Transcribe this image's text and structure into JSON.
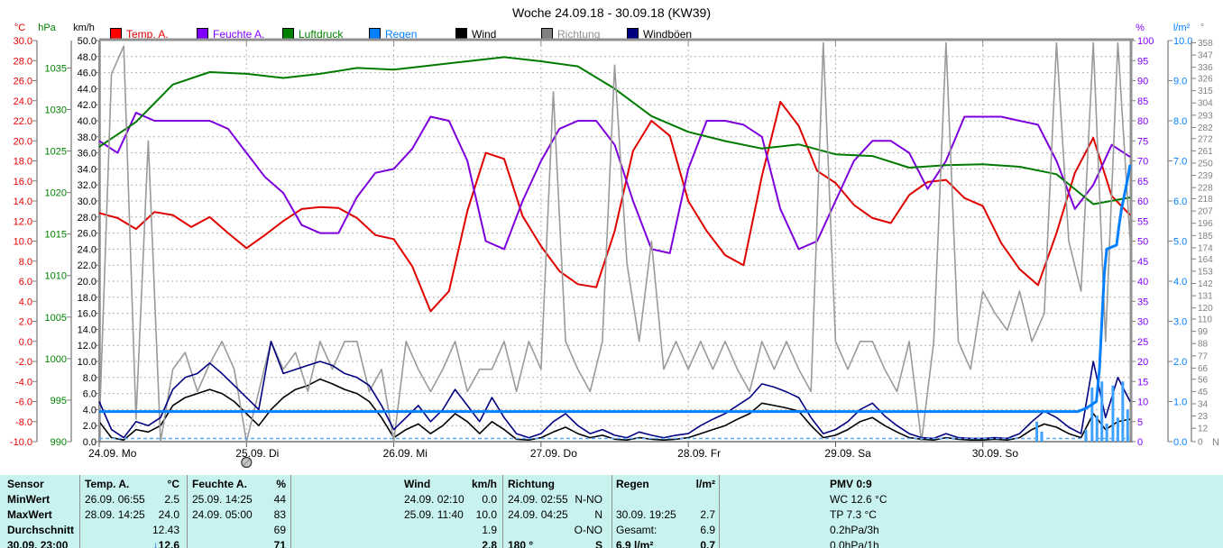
{
  "title": "Woche 24.09.18 - 30.09.18 (KW39)",
  "legend": [
    {
      "label": "Temp. A.",
      "swatch": "#ff0000",
      "text_color": "#e00000"
    },
    {
      "label": "Feuchte A.",
      "swatch": "#8000ff",
      "text_color": "#8000ff"
    },
    {
      "label": "Luftdruck",
      "swatch": "#008000",
      "text_color": "#008000"
    },
    {
      "label": "Regen",
      "swatch": "#0080ff",
      "text_color": "#0080ff"
    },
    {
      "label": "Wind",
      "swatch": "#000000",
      "text_color": "#000000"
    },
    {
      "label": "Richtung",
      "swatch": "#808080",
      "text_color": "#909090"
    },
    {
      "label": "Windböen",
      "swatch": "#000080",
      "text_color": "#000000"
    }
  ],
  "axes": {
    "temp": {
      "unit": "°C",
      "color": "#e80000",
      "ticks": [
        "30.0",
        "28.0",
        "26.0",
        "24.0",
        "22.0",
        "20.0",
        "18.0",
        "16.0",
        "14.0",
        "12.0",
        "10.0",
        "8.0",
        "6.0",
        "4.0",
        "2.0",
        "0.0",
        "-2.0",
        "-4.0",
        "-6.0",
        "-8.0",
        "-10.0"
      ]
    },
    "pressure": {
      "unit": "hPa",
      "color": "#008000",
      "ticks": [
        "1035",
        "1030",
        "1025",
        "1020",
        "1015",
        "1010",
        "1005",
        "1000",
        "995",
        "990"
      ]
    },
    "wind": {
      "unit": "km/h",
      "color": "#000000",
      "ticks": [
        "50.0",
        "48.0",
        "46.0",
        "44.0",
        "42.0",
        "40.0",
        "38.0",
        "36.0",
        "34.0",
        "32.0",
        "30.0",
        "28.0",
        "26.0",
        "24.0",
        "22.0",
        "20.0",
        "18.0",
        "16.0",
        "14.0",
        "12.0",
        "10.0",
        "8.0",
        "6.0",
        "4.0",
        "2.0",
        "0.0"
      ]
    },
    "humidity": {
      "unit": "%",
      "color": "#8000ff",
      "ticks": [
        "100",
        "95",
        "90",
        "85",
        "80",
        "75",
        "70",
        "65",
        "60",
        "55",
        "50",
        "45",
        "40",
        "35",
        "30",
        "25",
        "20",
        "15",
        "10",
        "5",
        "0"
      ]
    },
    "rain": {
      "unit": "l/m²",
      "color": "#0080ff",
      "ticks": [
        "10.0",
        "9.0",
        "8.0",
        "7.0",
        "6.0",
        "5.0",
        "4.0",
        "3.0",
        "2.0",
        "1.0",
        "0.0"
      ]
    },
    "direction": {
      "unit": "°",
      "color": "#808080",
      "ticks": [
        "358",
        "347",
        "336",
        "326",
        "315",
        "304",
        "293",
        "282",
        "272",
        "261",
        "250",
        "239",
        "228",
        "218",
        "207",
        "196",
        "185",
        "174",
        "164",
        "153",
        "142",
        "131",
        "120",
        "110",
        "99",
        "88",
        "77",
        "66",
        "56",
        "45",
        "34",
        "23",
        "12",
        "0"
      ],
      "compass_end": "N"
    }
  },
  "x_axis": {
    "days": [
      "24.09. Mo",
      "25.09. Di",
      "26.09. Mi",
      "27.09. Do",
      "28.09. Fr",
      "29.09. Sa",
      "30.09. So"
    ],
    "moon_symbol_day_index": 1
  },
  "chart_data": {
    "type": "line",
    "x_unit": "hours from 24.09 00:00",
    "x_range": [
      0,
      168
    ],
    "axis_ranges": {
      "temp": [
        -10,
        30
      ],
      "pressure": [
        990,
        1038.3
      ],
      "wind": [
        0,
        50
      ],
      "humidity": [
        0,
        100
      ],
      "rain": [
        0,
        10
      ],
      "direction": [
        0,
        360
      ]
    },
    "grid": {
      "h_divisions": 25,
      "v_days": 7
    },
    "series": [
      {
        "name": "Temp. A.",
        "axis": "temp",
        "color": "#e00000",
        "width": 2,
        "step": 3,
        "values": [
          12.8,
          12.3,
          11.2,
          12.9,
          12.6,
          11.4,
          12.4,
          10.8,
          9.3,
          10.6,
          12,
          13.2,
          13.4,
          13.3,
          12.3,
          10.6,
          10.2,
          7.5,
          3,
          5,
          13,
          18.8,
          18.2,
          12.5,
          9.5,
          7,
          5.7,
          5.4,
          11,
          19,
          22,
          20.5,
          14,
          11,
          8.6,
          7.6,
          16.5,
          23.9,
          21.5,
          17,
          15.8,
          13.6,
          12.3,
          11.8,
          14.6,
          15.9,
          16.1,
          14.3,
          13.5,
          9.8,
          7.2,
          5.6,
          10.8,
          16.8,
          20.3,
          14.5,
          12.6
        ]
      },
      {
        "name": "Feuchte A.",
        "axis": "humidity",
        "color": "#7d00dd",
        "width": 2,
        "step": 3,
        "values": [
          75,
          72,
          82,
          80,
          80,
          80,
          80,
          78,
          72,
          66,
          62,
          54,
          52,
          52,
          61,
          67,
          68,
          73,
          81,
          80,
          70,
          50,
          48,
          60,
          70,
          78,
          80,
          80,
          74,
          60,
          48,
          47,
          68,
          80,
          80,
          79,
          76,
          58,
          48,
          50,
          60,
          70,
          75,
          75,
          72,
          63,
          70,
          81,
          81,
          81,
          80,
          79,
          70,
          58,
          64,
          74,
          71
        ]
      },
      {
        "name": "Luftdruck",
        "axis": "pressure",
        "color": "#007a00",
        "width": 2,
        "step": 6,
        "values": [
          1025.5,
          1028.5,
          1033,
          1034.5,
          1034.3,
          1033.8,
          1034.3,
          1035,
          1034.8,
          1035.3,
          1035.8,
          1036.3,
          1035.8,
          1035.2,
          1032.5,
          1029.2,
          1027.3,
          1026.2,
          1025.3,
          1025.8,
          1024.6,
          1024.4,
          1023,
          1023.3,
          1023.4,
          1023.1,
          1022.2,
          1018.6,
          1019.4
        ]
      },
      {
        "name": "Wind",
        "axis": "wind",
        "color": "#000000",
        "width": 1.6,
        "step": 2,
        "values": [
          2.5,
          0.5,
          0.2,
          1.5,
          1.2,
          2,
          4.5,
          5.5,
          6,
          6.5,
          6,
          5,
          3.5,
          2,
          4,
          5.5,
          6.5,
          7,
          7.8,
          7.2,
          6.5,
          6,
          5,
          3,
          0.5,
          1.5,
          2.2,
          1,
          2,
          3.5,
          2.5,
          1,
          2.5,
          1.5,
          0.3,
          0.2,
          0.5,
          1.2,
          1.8,
          1,
          0.5,
          0.8,
          0.3,
          0.2,
          0.5,
          0.3,
          0.2,
          0.3,
          0.5,
          1,
          1.5,
          2,
          2.8,
          3.5,
          4.8,
          4.5,
          4.2,
          3.8,
          2,
          0.5,
          0.8,
          1.5,
          2.5,
          3,
          2,
          1.2,
          0.5,
          0.3,
          0.2,
          0.5,
          0.3,
          0.2,
          0.2,
          0.3,
          0.2,
          0.5,
          1.5,
          2.2,
          1.8,
          1,
          0.5,
          3.5,
          1.5,
          2.5,
          2.8
        ]
      },
      {
        "name": "Richtung",
        "axis": "direction",
        "color": "#9a9a9a",
        "width": 1.6,
        "step": 2,
        "values": [
          10,
          330,
          355,
          20,
          270,
          0,
          65,
          80,
          45,
          70,
          90,
          65,
          0,
          45,
          90,
          65,
          80,
          45,
          90,
          65,
          90,
          90,
          45,
          65,
          0,
          90,
          65,
          45,
          65,
          90,
          45,
          65,
          65,
          90,
          45,
          90,
          65,
          314,
          90,
          65,
          45,
          90,
          338,
          160,
          90,
          180,
          65,
          90,
          65,
          90,
          65,
          90,
          65,
          45,
          90,
          65,
          90,
          65,
          45,
          358,
          90,
          65,
          90,
          90,
          65,
          45,
          90,
          0,
          90,
          358,
          90,
          65,
          135,
          115,
          100,
          135,
          90,
          115,
          358,
          180,
          135,
          358,
          90,
          358,
          180
        ]
      },
      {
        "name": "Windböen",
        "axis": "wind",
        "color": "#000080",
        "width": 1.6,
        "step": 2,
        "values": [
          5,
          1.5,
          0.5,
          2.5,
          2,
          3,
          6.5,
          8,
          8.5,
          9.8,
          8.5,
          7,
          5.5,
          4,
          12.5,
          8.5,
          9,
          9.5,
          10,
          9.5,
          8.5,
          8,
          7,
          4.5,
          1.5,
          3,
          4.5,
          2.5,
          4,
          6.5,
          4.5,
          2.5,
          5.5,
          3,
          1,
          0.5,
          1,
          2.5,
          3.5,
          2,
          1,
          1.5,
          0.8,
          0.5,
          1.2,
          0.8,
          0.5,
          0.8,
          1,
          2,
          2.8,
          3.5,
          4.5,
          5.5,
          7.2,
          6.8,
          6.2,
          5.5,
          3,
          1,
          1.5,
          2.5,
          4,
          4.8,
          3.2,
          2,
          1,
          0.5,
          0.4,
          1,
          0.5,
          0.4,
          0.4,
          0.5,
          0.4,
          1,
          2.5,
          3.8,
          3,
          1.8,
          1,
          10,
          3,
          8,
          5
        ]
      },
      {
        "name": "Regen (Summe)",
        "axis": "rain",
        "color": "#0080ff",
        "width": 3,
        "points": [
          [
            0,
            0.75
          ],
          [
            159.5,
            0.75
          ],
          [
            161,
            0.85
          ],
          [
            162.5,
            1.0
          ],
          [
            163,
            1.8
          ],
          [
            163.4,
            3.0
          ],
          [
            163.8,
            4.2
          ],
          [
            164.2,
            4.8
          ],
          [
            165.8,
            4.9
          ],
          [
            166.2,
            5.4
          ],
          [
            166.6,
            5.8
          ],
          [
            167,
            6.1
          ],
          [
            167.4,
            6.4
          ],
          [
            167.7,
            6.65
          ],
          [
            168,
            6.9
          ]
        ]
      }
    ],
    "rain_bars": {
      "color": "#3fa2ff",
      "axis": "rain",
      "points": [
        [
          152.8,
          0.5
        ],
        [
          153.6,
          0.25
        ],
        [
          160.8,
          0.3
        ],
        [
          161.8,
          1.35
        ],
        [
          162.6,
          0.65
        ],
        [
          163.4,
          1.5
        ],
        [
          164.2,
          0.45
        ],
        [
          165.2,
          1.4
        ],
        [
          166,
          0.6
        ],
        [
          166.8,
          1.5
        ],
        [
          167.6,
          0.8
        ]
      ]
    }
  },
  "table": {
    "row_labels": [
      "Sensor",
      "MinWert",
      "MaxWert",
      "Durchschnitt",
      "30.09. 23:00"
    ],
    "columns": [
      {
        "name": "Temp. A.",
        "unit": "°C",
        "rows": [
          [
            "26.09. 06:55",
            "2.5"
          ],
          [
            "28.09. 14:25",
            "24.0"
          ],
          [
            "",
            "12.43"
          ],
          [
            "",
            "↓12.6"
          ]
        ]
      },
      {
        "name": "Feuchte A.",
        "unit": "%",
        "rows": [
          [
            "25.09. 14:25",
            "44"
          ],
          [
            "24.09. 05:00",
            "83"
          ],
          [
            "",
            "69"
          ],
          [
            "",
            "71"
          ]
        ]
      },
      {
        "name": "Wind",
        "unit": "km/h",
        "rows": [
          [
            "24.09. 02:10",
            "0.0"
          ],
          [
            "25.09. 11:40",
            "10.0"
          ],
          [
            "",
            "1.9"
          ],
          [
            "",
            "2.8"
          ]
        ]
      },
      {
        "name": "Richtung",
        "unit": "",
        "rows": [
          [
            "24.09. 02:55",
            "N-NO"
          ],
          [
            "24.09. 04:25",
            "N"
          ],
          [
            "",
            "O-NO"
          ],
          [
            "180 °",
            "S"
          ]
        ]
      },
      {
        "name": "Regen",
        "unit": "l/m²",
        "rows": [
          [
            "",
            ""
          ],
          [
            "30.09. 19:25",
            "2.7"
          ],
          [
            "Gesamt:",
            "6.9"
          ],
          [
            "6.9 l/m²",
            "0.7"
          ]
        ]
      }
    ],
    "pmv": {
      "title": "PMV 0:9",
      "lines": [
        "WC 12.6 °C",
        "TP 7.3 °C",
        "0.2hPa/3h",
        "0.0hPa/1h"
      ]
    }
  }
}
